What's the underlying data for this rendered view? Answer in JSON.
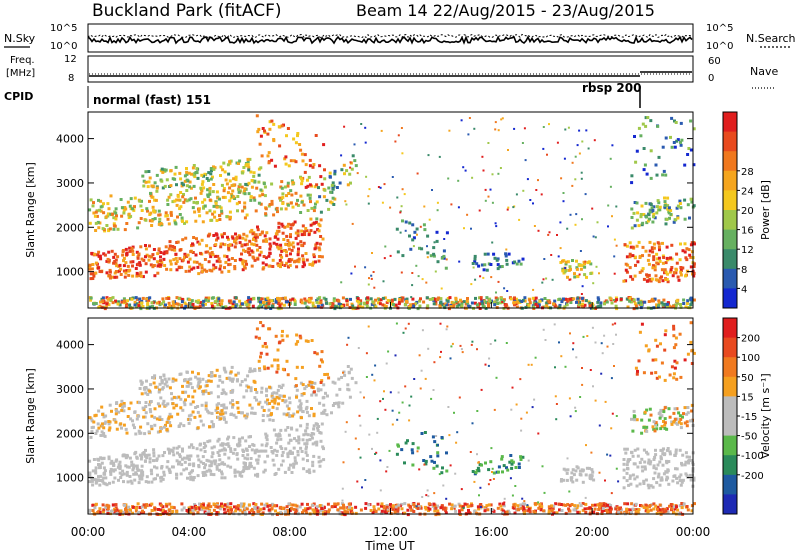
{
  "header": {
    "title": "Buckland Park (fitACF)",
    "beam_info": "Beam 14 22/Aug/2015 - 23/Aug/2015"
  },
  "aux_panels": {
    "nsky_label": "N.Sky",
    "nsky_ticks": [
      "10^5",
      "10^0"
    ],
    "nsearch_label": "N.Search",
    "nsearch_ticks": [
      "10^5",
      "10^0"
    ],
    "freq_label_line1": "Freq.",
    "freq_label_line2": "[MHz]",
    "freq_ticks": [
      "12",
      "8"
    ],
    "nave_label": "Nave",
    "nave_ticks": [
      "60",
      "0"
    ],
    "cpid_label": "CPID",
    "cpid_mode_1": "normal (fast) 151",
    "cpid_mode_2": "rbsp 200"
  },
  "chart_data": [
    {
      "type": "heatmap",
      "name": "power",
      "ylabel": "Slant Range [km]",
      "yticks": [
        1000,
        2000,
        3000,
        4000
      ],
      "ylim": [
        180,
        4600
      ],
      "x_domain_hours": [
        0,
        24
      ],
      "colorbar_label": "Power [dB]",
      "colorbar_ticks": [
        4,
        8,
        12,
        16,
        20,
        24,
        28
      ],
      "colorbar_colors": [
        "#1428d0",
        "#2a5ab0",
        "#3a8a6a",
        "#66b060",
        "#a0c84a",
        "#f4c81e",
        "#f5a51e",
        "#f0781e",
        "#e84a1e",
        "#e01e1e"
      ]
    },
    {
      "type": "heatmap",
      "name": "velocity",
      "ylabel": "Slant Range [km]",
      "yticks": [
        1000,
        2000,
        3000,
        4000
      ],
      "ylim": [
        180,
        4600
      ],
      "x_domain_hours": [
        0,
        24
      ],
      "colorbar_label": "Velocity [m s⁻¹]",
      "colorbar_ticks": [
        "200",
        "100",
        "50",
        "15",
        "-15",
        "-50",
        "-100",
        "-200"
      ],
      "colorbar_colors": [
        "#1e2ab4",
        "#1e5aa0",
        "#2a8a5a",
        "#5ab84a",
        "#bcbcbc",
        "#bcbcbc",
        "#f5a020",
        "#f07a20",
        "#e84a20",
        "#e01e1e"
      ]
    }
  ],
  "x_axis": {
    "label": "Time UT",
    "ticks": [
      "00:00",
      "04:00",
      "08:00",
      "12:00",
      "16:00",
      "20:00",
      "00:00"
    ]
  }
}
